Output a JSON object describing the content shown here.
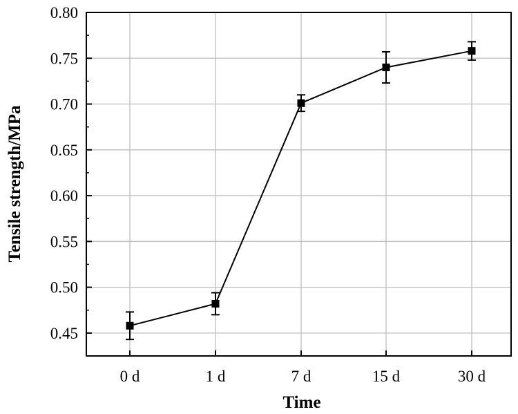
{
  "chart_data": {
    "type": "line",
    "title": "",
    "xlabel": "Time",
    "ylabel": "Tensile strength/MPa",
    "categories": [
      "0 d",
      "1 d",
      "7 d",
      "15 d",
      "30 d"
    ],
    "series": [
      {
        "values": [
          0.458,
          0.482,
          0.701,
          0.74,
          0.758
        ],
        "error": [
          0.015,
          0.012,
          0.009,
          0.017,
          0.01
        ],
        "color": "#000000",
        "marker": "square"
      }
    ],
    "ylim": [
      0.425,
      0.8
    ],
    "yticks": [
      "0.45",
      "0.50",
      "0.55",
      "0.60",
      "0.65",
      "0.70",
      "0.75",
      "0.80"
    ],
    "grid": true,
    "legend": "none"
  }
}
